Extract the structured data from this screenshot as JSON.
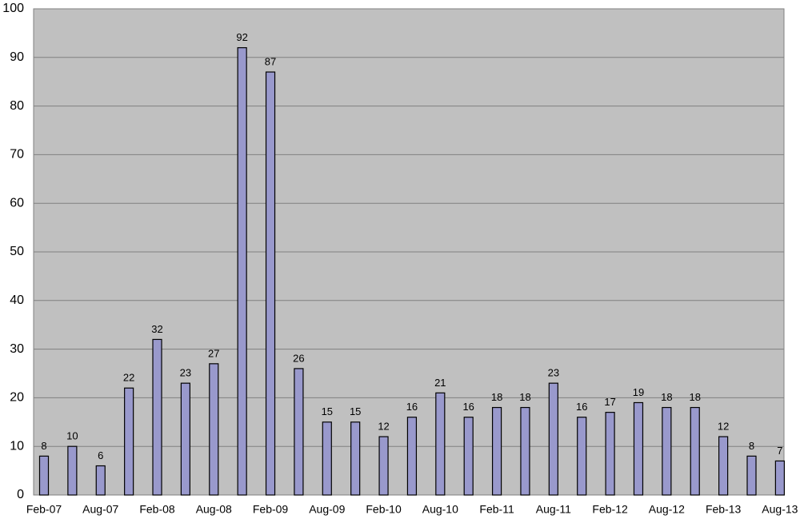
{
  "chart_data": {
    "type": "bar",
    "categories": [
      "Feb-07",
      null,
      "Aug-07",
      null,
      "Feb-08",
      null,
      "Aug-08",
      null,
      "Feb-09",
      null,
      "Aug-09",
      null,
      "Feb-10",
      null,
      "Aug-10",
      null,
      "Feb-11",
      null,
      "Aug-11",
      null,
      "Feb-12",
      null,
      "Aug-12",
      null,
      "Feb-13",
      null,
      "Aug-13"
    ],
    "values": [
      8,
      10,
      6,
      22,
      32,
      23,
      27,
      92,
      87,
      26,
      15,
      15,
      12,
      16,
      21,
      16,
      18,
      18,
      23,
      16,
      17,
      19,
      18,
      18,
      12,
      8,
      7
    ],
    "color": "#9999cc",
    "ylim": [
      0,
      100
    ],
    "yticks": [
      0,
      10,
      20,
      30,
      40,
      50,
      60,
      70,
      80,
      90,
      100
    ],
    "grid": true
  }
}
